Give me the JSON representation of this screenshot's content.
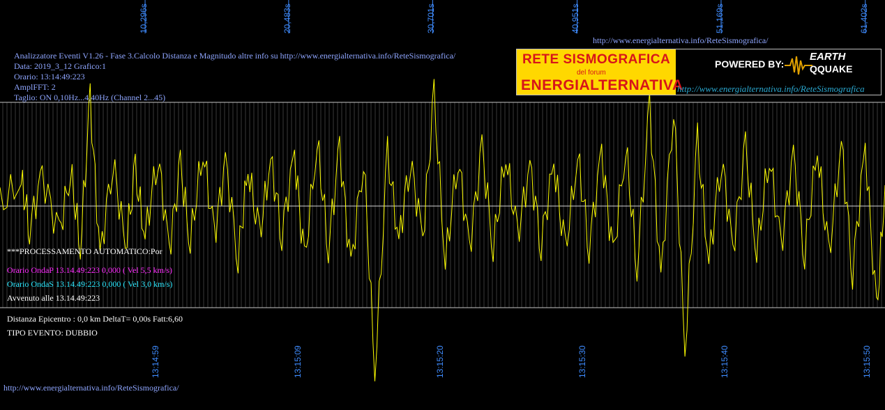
{
  "top_url": "http://www.energialternativa.info/ReteSismografica/",
  "bottom_url": "http://www.energialternativa.info/ReteSismografica/",
  "header": {
    "line1": "Analizzatore Eventi V1.26 - Fase 3.Calcolo Distanza e Magnitudo altre info su http://www.energialternativa.info/ReteSismografica/",
    "line2": "Data: 2019_3_12 Grafico:1",
    "line3": "Orario: 13:14:49:223",
    "line4": "AmplFFT: 2",
    "line5": "Taglio: ON 0,10Hz...4,40Hz       (Channel 2...45)"
  },
  "processing": {
    "title": "***PROCESSAMENTO AUTOMATICO:Por",
    "onda_p": "Orario OndaP 13.14.49:223  0,000 ( Vel 5,5 km/s)",
    "onda_s": "Orario OndaS 13.14.49:223  0,000 ( Vel 3,0 km/s)",
    "avvenuto": "Avvenuto alle 13.14.49:223",
    "distanza": "Distanza Epicentro : 0,0 km DeltaT= 0,00s  Fatt:6,60",
    "tipo": "TIPO EVENTO: DUBBIO"
  },
  "logo": {
    "title1": "RETE SISMOGRAFICA",
    "title2": "del forum",
    "title3": "ENERGIALTERNATIVA",
    "powered": "POWERED BY:",
    "eq_line1": "EARTH",
    "eq_line2": "QQUAKE",
    "url": "http://www.energialternativa.info/ReteSismografica"
  },
  "colors": {
    "trace": "#ffff00",
    "grid": "#3a3a3a",
    "axis_line": "#c8c8c8",
    "time_labels": "#3f8cff",
    "info_text": "#8fa6ff"
  },
  "chart_data": {
    "type": "line",
    "title": "",
    "xlabel": "",
    "ylabel": "",
    "elapsed_ticks": [
      "10,296s",
      "20,483s",
      "30,701s",
      "40,951s",
      "51,169s",
      "61,402s"
    ],
    "elapsed_values": [
      10.296,
      20.483,
      30.701,
      40.951,
      51.169,
      61.402
    ],
    "clock_ticks": [
      "13:14:59",
      "13:15:09",
      "13:15:20",
      "13:15:30",
      "13:15:40",
      "13:15:50"
    ],
    "x_range": [
      0,
      62.8
    ],
    "y_range": [
      -1.0,
      1.0
    ],
    "grid": true,
    "series": [
      {
        "color": "#ffff00",
        "x": [
          0,
          1.5,
          2.1,
          3.0,
          4.2,
          5.0,
          5.7,
          6.4,
          7.1,
          8.0,
          8.9,
          9.6,
          10.3,
          11.2,
          12.0,
          12.8,
          13.5,
          14.4,
          15.2,
          16.0,
          16.9,
          17.6,
          18.4,
          19.2,
          20.0,
          20.9,
          21.6,
          22.5,
          23.3,
          24.1,
          24.9,
          25.8,
          26.6,
          27.5,
          28.3,
          29.1,
          30.0,
          30.8,
          31.6,
          32.5,
          33.3,
          34.2,
          35.0,
          35.9,
          36.7,
          37.6,
          38.4,
          39.3,
          40.1,
          41.0,
          41.8,
          42.7,
          43.5,
          44.4,
          45.2,
          46.1,
          46.9,
          47.8,
          48.6,
          49.5,
          50.3,
          51.2,
          52.0,
          52.9,
          53.7,
          54.6,
          55.4,
          56.3,
          57.1,
          58.0,
          58.8,
          59.7,
          60.5,
          61.4,
          62.2,
          62.8
        ],
        "y": [
          0.0,
          0.25,
          -0.2,
          0.3,
          -0.28,
          0.35,
          -0.4,
          1.02,
          -0.5,
          0.45,
          -0.38,
          0.32,
          -0.3,
          0.5,
          -0.42,
          0.38,
          -0.35,
          0.55,
          -0.3,
          0.42,
          -0.48,
          0.36,
          -0.3,
          0.44,
          -0.25,
          0.5,
          -0.55,
          0.62,
          -0.4,
          0.55,
          -0.6,
          0.48,
          -1.6,
          0.5,
          -0.35,
          0.45,
          -0.3,
          1.04,
          -0.55,
          0.48,
          -0.42,
          0.55,
          -0.4,
          0.5,
          -0.3,
          0.38,
          -0.35,
          0.42,
          -0.45,
          0.48,
          -0.38,
          0.52,
          -0.5,
          0.58,
          -0.6,
          0.95,
          -0.72,
          1.0,
          -1.4,
          0.62,
          -0.55,
          0.48,
          -0.42,
          0.55,
          -0.45,
          0.5,
          -0.4,
          0.48,
          -0.45,
          0.55,
          -0.5,
          0.6,
          -0.62,
          0.58,
          -1.05,
          0.2
        ]
      }
    ]
  }
}
